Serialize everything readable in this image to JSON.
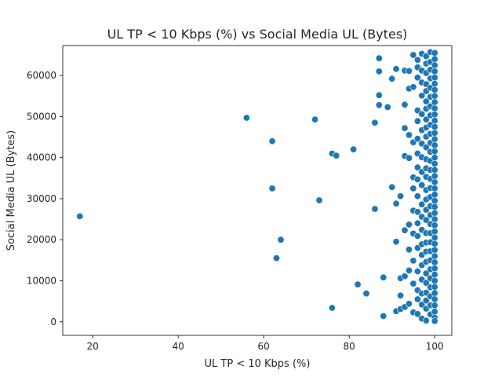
{
  "chart_data": {
    "type": "scatter",
    "title": "UL TP < 10 Kbps (%) vs Social Media UL (Bytes)",
    "xlabel": "UL TP < 10 Kbps (%)",
    "ylabel": "Social Media UL (Bytes)",
    "xlim": [
      13,
      104
    ],
    "ylim": [
      -3300,
      67300
    ],
    "xticks": [
      20,
      40,
      60,
      80,
      100
    ],
    "yticks": [
      0,
      10000,
      20000,
      30000,
      40000,
      50000,
      60000
    ],
    "grid": false,
    "legend": "none",
    "point_color": "#1f77b4",
    "points": [
      [
        17,
        25700
      ],
      [
        56,
        49700
      ],
      [
        62,
        44000
      ],
      [
        62,
        32500
      ],
      [
        63,
        15500
      ],
      [
        64,
        20000
      ],
      [
        72,
        49300
      ],
      [
        73,
        29600
      ],
      [
        76,
        41000
      ],
      [
        77,
        40500
      ],
      [
        76,
        3400
      ],
      [
        81,
        42000
      ],
      [
        82,
        9100
      ],
      [
        84,
        6900
      ],
      [
        86,
        48500
      ],
      [
        86,
        27500
      ],
      [
        87,
        64200
      ],
      [
        87,
        61000
      ],
      [
        87,
        55200
      ],
      [
        87,
        52800
      ],
      [
        88,
        10800
      ],
      [
        88,
        1400
      ],
      [
        89,
        52300
      ],
      [
        90,
        59200
      ],
      [
        90,
        32800
      ],
      [
        91,
        61600
      ],
      [
        91,
        28800
      ],
      [
        91,
        19500
      ],
      [
        91,
        2600
      ],
      [
        92,
        30600
      ],
      [
        92,
        10600
      ],
      [
        92,
        6400
      ],
      [
        92,
        3100
      ],
      [
        93,
        61200
      ],
      [
        93,
        52900
      ],
      [
        93,
        47200
      ],
      [
        93,
        40400
      ],
      [
        93,
        22300
      ],
      [
        93,
        11100
      ],
      [
        93,
        3600
      ],
      [
        94,
        61100
      ],
      [
        94,
        56800
      ],
      [
        94,
        45500
      ],
      [
        94,
        39900
      ],
      [
        94,
        23700
      ],
      [
        94,
        17600
      ],
      [
        94,
        12500
      ],
      [
        94,
        4400
      ],
      [
        95,
        65000
      ],
      [
        95,
        57200
      ],
      [
        95,
        43700
      ],
      [
        95,
        35200
      ],
      [
        95,
        32500
      ],
      [
        95,
        27100
      ],
      [
        95,
        21500
      ],
      [
        95,
        14900
      ],
      [
        95,
        9300
      ],
      [
        95,
        2300
      ],
      [
        96,
        63800
      ],
      [
        96,
        62000
      ],
      [
        96,
        59500
      ],
      [
        96,
        51500
      ],
      [
        96,
        48900
      ],
      [
        96,
        44600
      ],
      [
        96,
        41000
      ],
      [
        96,
        37600
      ],
      [
        96,
        34700
      ],
      [
        96,
        30600
      ],
      [
        96,
        26800
      ],
      [
        96,
        24000
      ],
      [
        96,
        20900
      ],
      [
        96,
        18000
      ],
      [
        96,
        12300
      ],
      [
        96,
        7700
      ],
      [
        96,
        5500
      ],
      [
        96,
        1900
      ],
      [
        97,
        65300
      ],
      [
        97,
        61200
      ],
      [
        97,
        58300
      ],
      [
        97,
        55100
      ],
      [
        97,
        50600
      ],
      [
        97,
        46700
      ],
      [
        97,
        43400
      ],
      [
        97,
        40100
      ],
      [
        97,
        36500
      ],
      [
        97,
        33300
      ],
      [
        97,
        28600
      ],
      [
        97,
        25600
      ],
      [
        97,
        22400
      ],
      [
        97,
        18900
      ],
      [
        97,
        16300
      ],
      [
        97,
        13800
      ],
      [
        97,
        10300
      ],
      [
        97,
        6900
      ],
      [
        97,
        4200
      ],
      [
        97,
        800
      ],
      [
        98,
        64700
      ],
      [
        98,
        62900
      ],
      [
        98,
        60600
      ],
      [
        98,
        57900
      ],
      [
        98,
        56200
      ],
      [
        98,
        53700
      ],
      [
        98,
        51900
      ],
      [
        98,
        49300
      ],
      [
        98,
        47300
      ],
      [
        98,
        45100
      ],
      [
        98,
        42500
      ],
      [
        98,
        39600
      ],
      [
        98,
        37400
      ],
      [
        98,
        35300
      ],
      [
        98,
        32100
      ],
      [
        98,
        29800
      ],
      [
        98,
        27300
      ],
      [
        98,
        24800
      ],
      [
        98,
        21600
      ],
      [
        98,
        19300
      ],
      [
        98,
        17100
      ],
      [
        98,
        14600
      ],
      [
        98,
        11800
      ],
      [
        98,
        9500
      ],
      [
        98,
        7100
      ],
      [
        98,
        5200
      ],
      [
        98,
        3200
      ],
      [
        98,
        300
      ],
      [
        99,
        65700
      ],
      [
        99,
        63300
      ],
      [
        99,
        61400
      ],
      [
        99,
        59300
      ],
      [
        99,
        57000
      ],
      [
        99,
        54800
      ],
      [
        99,
        52500
      ],
      [
        99,
        50300
      ],
      [
        99,
        48000
      ],
      [
        99,
        45800
      ],
      [
        99,
        43600
      ],
      [
        99,
        41400
      ],
      [
        99,
        39200
      ],
      [
        99,
        37000
      ],
      [
        99,
        34800
      ],
      [
        99,
        32600
      ],
      [
        99,
        30400
      ],
      [
        99,
        28200
      ],
      [
        99,
        26000
      ],
      [
        99,
        23800
      ],
      [
        99,
        21600
      ],
      [
        99,
        19400
      ],
      [
        99,
        17200
      ],
      [
        99,
        15000
      ],
      [
        99,
        12800
      ],
      [
        99,
        10600
      ],
      [
        99,
        8400
      ],
      [
        99,
        6200
      ],
      [
        99,
        4000
      ],
      [
        99,
        1800
      ],
      [
        100,
        65500
      ],
      [
        100,
        64000
      ],
      [
        100,
        62500
      ],
      [
        100,
        61000
      ],
      [
        100,
        59500
      ],
      [
        100,
        58000
      ],
      [
        100,
        56500
      ],
      [
        100,
        55000
      ],
      [
        100,
        53500
      ],
      [
        100,
        52000
      ],
      [
        100,
        50500
      ],
      [
        100,
        49000
      ],
      [
        100,
        47500
      ],
      [
        100,
        46000
      ],
      [
        100,
        44500
      ],
      [
        100,
        43000
      ],
      [
        100,
        41500
      ],
      [
        100,
        40000
      ],
      [
        100,
        38500
      ],
      [
        100,
        37000
      ],
      [
        100,
        35500
      ],
      [
        100,
        34000
      ],
      [
        100,
        32500
      ],
      [
        100,
        31000
      ],
      [
        100,
        29500
      ],
      [
        100,
        28000
      ],
      [
        100,
        26500
      ],
      [
        100,
        25000
      ],
      [
        100,
        23500
      ],
      [
        100,
        22000
      ],
      [
        100,
        20500
      ],
      [
        100,
        19000
      ],
      [
        100,
        17500
      ],
      [
        100,
        16000
      ],
      [
        100,
        14500
      ],
      [
        100,
        13000
      ],
      [
        100,
        11500
      ],
      [
        100,
        10000
      ],
      [
        100,
        8500
      ],
      [
        100,
        7000
      ],
      [
        100,
        5500
      ],
      [
        100,
        4000
      ],
      [
        100,
        2500
      ],
      [
        100,
        1000
      ],
      [
        100,
        200
      ]
    ]
  }
}
